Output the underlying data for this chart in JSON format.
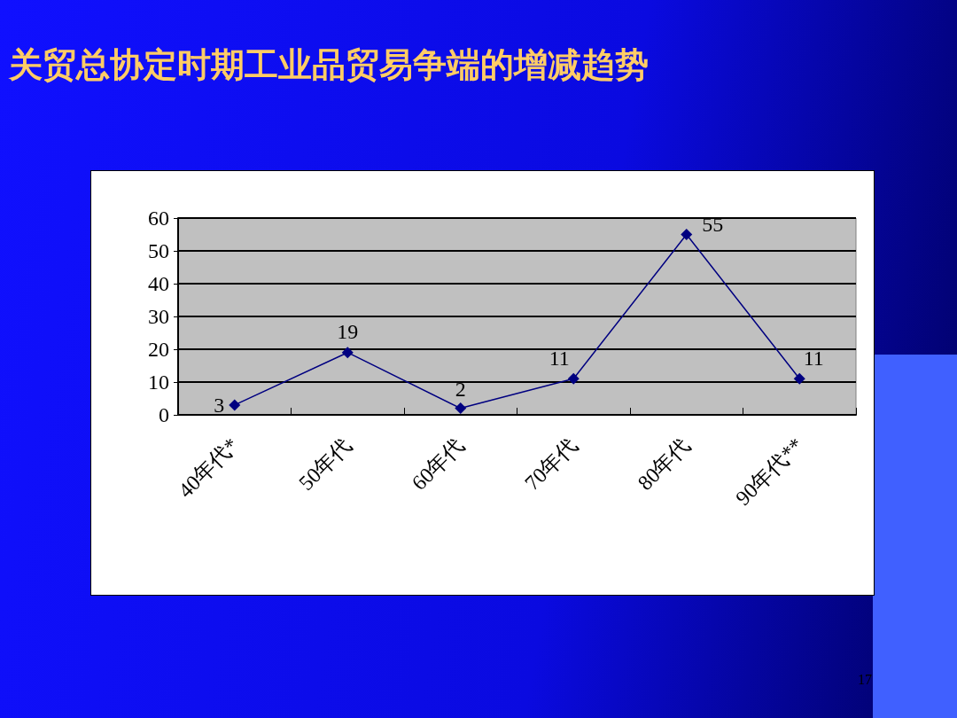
{
  "chart_data": {
    "type": "line",
    "title": "关贸总协定时期工业品贸易争端的增减趋势",
    "categories": [
      "40年代*",
      "50年代",
      "60年代",
      "70年代",
      "80年代",
      "90年代**"
    ],
    "series": [
      {
        "color": "#000080",
        "values": [
          3,
          19,
          2,
          11,
          55,
          11
        ]
      }
    ],
    "ylim": [
      0,
      60
    ],
    "yticks": [
      0,
      10,
      20,
      30,
      40,
      50,
      60
    ],
    "grid": "y",
    "marker": "diamond",
    "line_style": "solid",
    "data_labels": true,
    "annotations": [
      "17"
    ]
  }
}
